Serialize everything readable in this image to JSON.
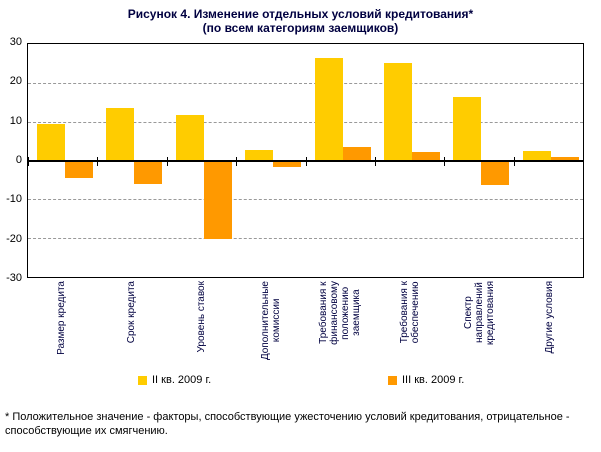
{
  "title": {
    "line1": "Рисунок 4. Изменение отдельных условий кредитования*",
    "line2": "(по всем категориям заемщиков)"
  },
  "footnote": "* Положительное значение - факторы, способствующие ужесточению условий кредитования, отрицательное - способствующие их смягчению.",
  "chart_data": {
    "type": "bar",
    "title": "Рисунок 4. Изменение отдельных условий кредитования* (по всем категориям заемщиков)",
    "categories": [
      "Размер кредита",
      "Срок кредита",
      "Уровень ставок",
      "Дополнительные\nкомиссии",
      "Требования к\nфинансовому\nположению\nзаемщика",
      "Требования к\nобеспечению",
      "Спектр\nнаправлений\nкредитования",
      "Другие условия"
    ],
    "series": [
      {
        "name": "II кв. 2009 г.",
        "color": "#FFCC00",
        "values": [
          9.4,
          13.4,
          11.6,
          2.8,
          26.3,
          25.2,
          16.3,
          2.4
        ]
      },
      {
        "name": "III кв. 2009 г.",
        "color": "#FF9900",
        "values": [
          -4.5,
          -6.0,
          -20.2,
          -1.8,
          3.5,
          2.2,
          -6.4,
          0.8
        ]
      }
    ],
    "y_ticks": [
      30,
      20,
      10,
      0,
      -10,
      -20,
      -30
    ],
    "ylim": [
      -30,
      30
    ],
    "grid": "dashed horizontal at ±10 and ±20, solid axis at 0",
    "legend_position": "bottom",
    "grid_color": "#999999"
  }
}
